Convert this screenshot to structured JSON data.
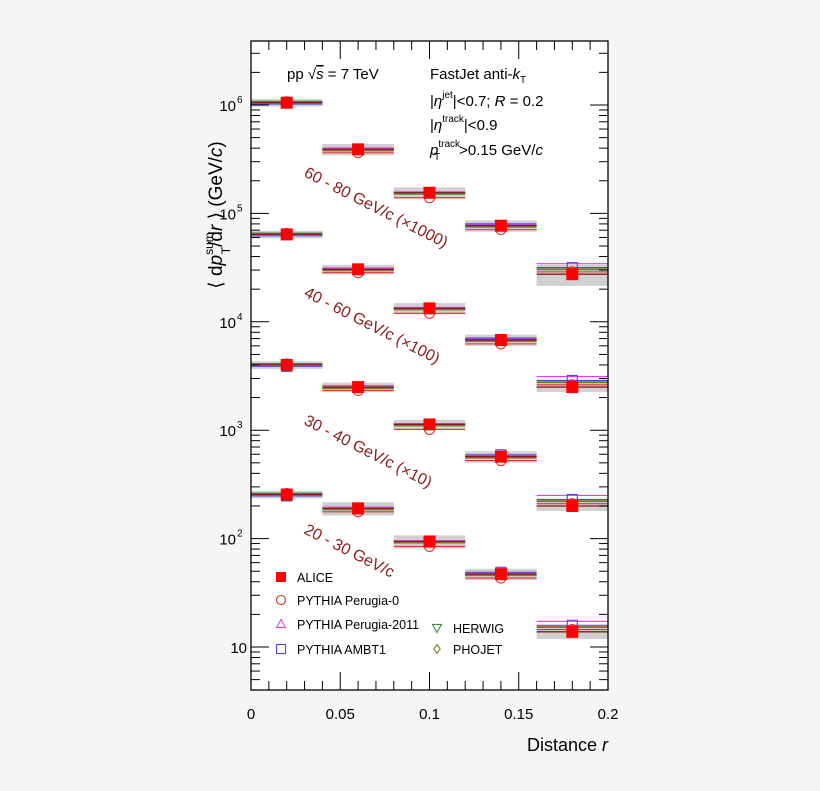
{
  "chart_data": {
    "type": "scatter",
    "title": "",
    "xlabel": "Distance r",
    "ylabel": "⟨ dp_T^sum/dr ⟩ (GeV/c)",
    "xlim": [
      0,
      0.2
    ],
    "ylim": [
      4,
      3900000
    ],
    "yscale": "log",
    "grid": false,
    "x_ticks": [
      0,
      0.05,
      0.1,
      0.15,
      0.2
    ],
    "x_tick_labels": [
      "0",
      "0.05",
      "0.1",
      "0.15",
      "0.2"
    ],
    "y_ticks": [
      10,
      100,
      1000,
      10000,
      100000,
      1000000
    ],
    "y_tick_labels": [
      "10",
      "10^2",
      "10^3",
      "10^4",
      "10^5",
      "10^6"
    ],
    "bin_edges": [
      0,
      0.04,
      0.08,
      0.12,
      0.16,
      0.2
    ],
    "x": [
      0.02,
      0.06,
      0.1,
      0.14,
      0.18
    ],
    "annotations": [
      "pp √s = 7 TeV",
      "FastJet anti-k_T",
      "|η^jet|<0.7; R = 0.2",
      "|η^track|<0.9",
      "p_T^track>0.15 GeV/c"
    ],
    "legend_position": "lower left",
    "legend": [
      "ALICE",
      "PYTHIA Perugia-0",
      "PYTHIA Perugia-2011",
      "PYTHIA AMBT1",
      "HERWIG",
      "PHOJET"
    ],
    "series": [
      {
        "name": "ALICE 60 - 80 GeV/c (×1000)",
        "label": "60 - 80 GeV/c (×1000)",
        "values": [
          1050000,
          390000,
          155000,
          77000,
          27500
        ],
        "syst_rel": [
          0.08,
          0.12,
          0.12,
          0.12,
          0.22
        ]
      },
      {
        "name": "ALICE 40 - 60 GeV/c (×100)",
        "label": "40 - 60 GeV/c (×100)",
        "values": [
          64000,
          30500,
          13300,
          6800,
          2500
        ],
        "syst_rel": [
          0.08,
          0.1,
          0.12,
          0.12,
          0.1
        ]
      },
      {
        "name": "ALICE 30 - 40 GeV/c (×10)",
        "label": "30 - 40 GeV/c (×10)",
        "values": [
          4000,
          2500,
          1130,
          570,
          200
        ],
        "syst_rel": [
          0.08,
          0.1,
          0.1,
          0.12,
          0.1
        ]
      },
      {
        "name": "ALICE 20 - 30 GeV/c",
        "label": "20 - 30 GeV/c",
        "values": [
          255,
          190,
          94,
          47,
          13.8
        ],
        "syst_rel": [
          0.08,
          0.14,
          0.14,
          0.12,
          0.14
        ]
      }
    ],
    "models": [
      {
        "name": "PYTHIA Perugia-0",
        "marker": "circle-open",
        "color": "#e8302c",
        "ratio_to_alice": [
          1.02,
          0.93,
          0.9,
          0.92,
          1.05
        ]
      },
      {
        "name": "PYTHIA Perugia-2011",
        "marker": "triangle-up-open",
        "color": "#e23fe0",
        "ratio_to_alice": [
          1.0,
          1.03,
          1.02,
          1.02,
          1.25
        ]
      },
      {
        "name": "PYTHIA AMBT1",
        "marker": "square-open",
        "color": "#4a4adf",
        "ratio_to_alice": [
          0.97,
          1.0,
          1.0,
          1.04,
          1.15
        ]
      },
      {
        "name": "HERWIG",
        "marker": "triangle-down-open",
        "color": "#3b8a3b",
        "ratio_to_alice": [
          1.03,
          0.97,
          0.97,
          0.98,
          1.1
        ]
      },
      {
        "name": "PHOJET",
        "marker": "diamond-open",
        "color": "#8a7a2a",
        "ratio_to_alice": [
          1.0,
          0.98,
          0.98,
          0.97,
          1.12
        ]
      }
    ]
  },
  "colors": {
    "alice": "#ff0000",
    "annotation_label": "#8b1a1a",
    "syst_band": "#c8c8c8",
    "frame": "#000000",
    "page_bg": "#f5f5f5",
    "plot_bg": "#ffffff"
  },
  "text": {
    "info_left": "pp √s = 7 TeV",
    "info_right_1": "FastJet anti-kT",
    "info_right_2": "|ηjet|<0.7; R = 0.2",
    "info_right_3": "|ηtrack|<0.9",
    "info_right_4": "pTtrack>0.15 GeV/c",
    "xlabel": "Distance r"
  }
}
